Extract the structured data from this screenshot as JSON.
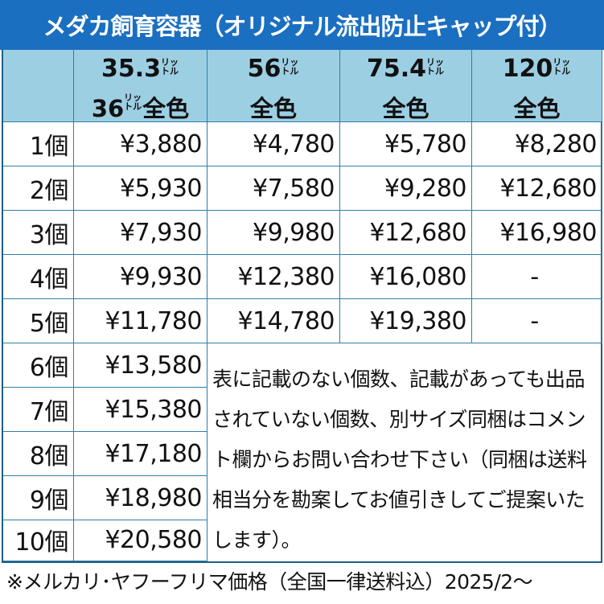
{
  "title": "メダカ飼育容器（オリジナル流出防止キャップ付）",
  "columns": [
    {
      "size": "35.3",
      "unit": "リットル",
      "line2_size": "36",
      "line2_unit": "リットル",
      "line2_text": "全色"
    },
    {
      "size": "56",
      "unit": "リットル",
      "line2_text": "全色"
    },
    {
      "size": "75.4",
      "unit": "リットル",
      "line2_text": "全色"
    },
    {
      "size": "120",
      "unit": "リットル",
      "line2_text": "全色"
    }
  ],
  "unit_small": {
    "top": "リッ",
    "bottom": "トル"
  },
  "rows": [
    {
      "qty": "1個",
      "prices": [
        "¥3,880",
        "¥4,780",
        "¥5,780",
        "¥8,280"
      ]
    },
    {
      "qty": "2個",
      "prices": [
        "¥5,930",
        "¥7,580",
        "¥9,280",
        "¥12,680"
      ]
    },
    {
      "qty": "3個",
      "prices": [
        "¥7,930",
        "¥9,980",
        "¥12,680",
        "¥16,980"
      ]
    },
    {
      "qty": "4個",
      "prices": [
        "¥9,930",
        "¥12,380",
        "¥16,080",
        "-"
      ]
    },
    {
      "qty": "5個",
      "prices": [
        "¥11,780",
        "¥14,780",
        "¥19,380",
        "-"
      ]
    },
    {
      "qty": "6個",
      "prices": [
        "¥13,580"
      ]
    },
    {
      "qty": "7個",
      "prices": [
        "¥15,380"
      ]
    },
    {
      "qty": "8個",
      "prices": [
        "¥17,180"
      ]
    },
    {
      "qty": "9個",
      "prices": [
        "¥18,980"
      ]
    },
    {
      "qty": "10個",
      "prices": [
        "¥20,580"
      ]
    }
  ],
  "note": "表に記載のない個数、記載があっても出品されていない個数、別サイズ同梱はコメント欄からお問い合わせ下さい（同梱は送料相当分を勘案してお値引きしてご提案いたします）。",
  "footer": "※メルカリ･ヤフーフリマ価格（全国一律送料込）2025/2～",
  "colors": {
    "title_bg": "#1b6fc0",
    "header_bg": "#9dcfe3",
    "border": "#1d5f86"
  }
}
